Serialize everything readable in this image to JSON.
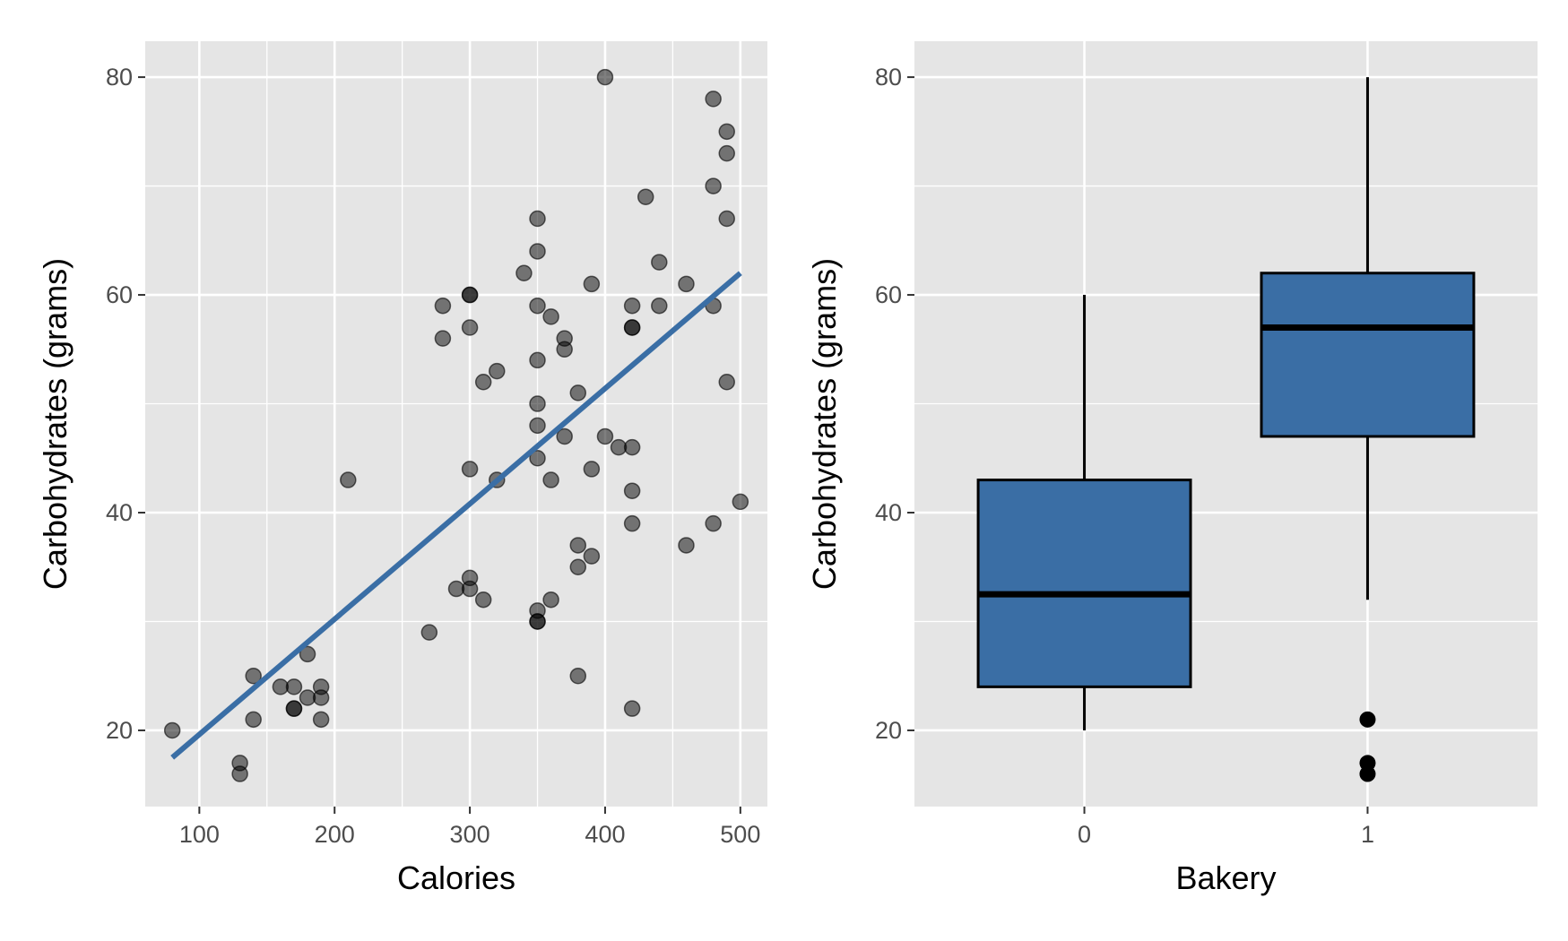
{
  "chart_data": [
    {
      "type": "scatter",
      "xlabel": "Calories",
      "ylabel": "Carbohydrates (grams)",
      "xlim": [
        60,
        520
      ],
      "ylim": [
        13,
        83.3
      ],
      "xticks": [
        100,
        200,
        300,
        400,
        500
      ],
      "yticks": [
        20,
        40,
        60,
        80
      ],
      "grid": true,
      "point_color": "#000000",
      "point_alpha": 0.5,
      "points": [
        [
          80,
          20
        ],
        [
          130,
          17
        ],
        [
          130,
          16
        ],
        [
          140,
          25
        ],
        [
          140,
          21
        ],
        [
          160,
          24
        ],
        [
          170,
          24
        ],
        [
          170,
          22
        ],
        [
          170,
          22
        ],
        [
          180,
          27
        ],
        [
          180,
          23
        ],
        [
          190,
          24
        ],
        [
          190,
          23
        ],
        [
          190,
          21
        ],
        [
          210,
          43
        ],
        [
          270,
          29
        ],
        [
          280,
          59
        ],
        [
          280,
          56
        ],
        [
          290,
          33
        ],
        [
          300,
          60
        ],
        [
          300,
          60
        ],
        [
          300,
          57
        ],
        [
          300,
          44
        ],
        [
          300,
          34
        ],
        [
          300,
          33
        ],
        [
          310,
          52
        ],
        [
          310,
          32
        ],
        [
          320,
          53
        ],
        [
          320,
          43
        ],
        [
          340,
          62
        ],
        [
          350,
          67
        ],
        [
          350,
          64
        ],
        [
          350,
          59
        ],
        [
          350,
          54
        ],
        [
          350,
          50
        ],
        [
          350,
          48
        ],
        [
          350,
          45
        ],
        [
          350,
          31
        ],
        [
          350,
          30
        ],
        [
          350,
          30
        ],
        [
          360,
          58
        ],
        [
          360,
          43
        ],
        [
          360,
          32
        ],
        [
          370,
          56
        ],
        [
          370,
          55
        ],
        [
          370,
          47
        ],
        [
          380,
          51
        ],
        [
          380,
          37
        ],
        [
          380,
          35
        ],
        [
          380,
          25
        ],
        [
          390,
          61
        ],
        [
          390,
          44
        ],
        [
          390,
          36
        ],
        [
          400,
          80
        ],
        [
          400,
          47
        ],
        [
          410,
          46
        ],
        [
          420,
          59
        ],
        [
          420,
          57
        ],
        [
          420,
          57
        ],
        [
          420,
          46
        ],
        [
          420,
          42
        ],
        [
          420,
          39
        ],
        [
          420,
          22
        ],
        [
          430,
          69
        ],
        [
          440,
          63
        ],
        [
          440,
          59
        ],
        [
          460,
          61
        ],
        [
          460,
          37
        ],
        [
          480,
          78
        ],
        [
          480,
          70
        ],
        [
          480,
          59
        ],
        [
          480,
          39
        ],
        [
          490,
          75
        ],
        [
          490,
          73
        ],
        [
          490,
          67
        ],
        [
          490,
          52
        ],
        [
          500,
          41
        ]
      ],
      "fit_line": {
        "color": "#3a6ea5",
        "x": [
          80,
          500
        ],
        "y": [
          17.5,
          62
        ]
      }
    },
    {
      "type": "box",
      "xlabel": "Bakery",
      "ylabel": "Carbohydrates (grams)",
      "ylim": [
        13,
        83.3
      ],
      "yticks": [
        20,
        40,
        60,
        80
      ],
      "categories": [
        "0",
        "1"
      ],
      "grid": true,
      "fill_color": "#3a6ea5",
      "boxes": [
        {
          "category": "0",
          "min": 20,
          "q1": 24,
          "median": 32.5,
          "q3": 43,
          "max": 60,
          "outliers": []
        },
        {
          "category": "1",
          "min": 32,
          "q1": 47,
          "median": 57,
          "q3": 62,
          "max": 80,
          "outliers": [
            21,
            17,
            16
          ]
        }
      ]
    }
  ]
}
